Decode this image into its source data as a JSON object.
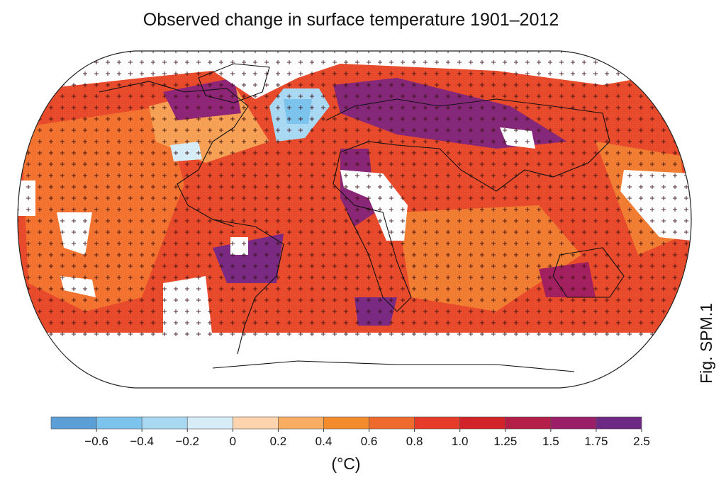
{
  "title": "Observed change in surface temperature 1901–2012",
  "colorbar": {
    "colors": [
      "#5b9fd6",
      "#7cc3ee",
      "#a9d8f3",
      "#d6ecf6",
      "#fdd4ae",
      "#f9ad63",
      "#f48c2e",
      "#ef6a2d",
      "#e73b2a",
      "#d3232a",
      "#b31f48",
      "#9a1f68",
      "#6d2a84"
    ],
    "ticks": [
      {
        "value": -0.6,
        "label": "−0.6"
      },
      {
        "value": -0.4,
        "label": "−0.4"
      },
      {
        "value": -0.2,
        "label": "−0.2"
      },
      0,
      0.2,
      0.4,
      0.6,
      0.8,
      {
        "value": 1.0,
        "label": "1.0"
      },
      1.25,
      1.5,
      1.75,
      2.5
    ]
  },
  "unit_label": "(°C)",
  "figure_label": "Fig. SPM.1"
}
